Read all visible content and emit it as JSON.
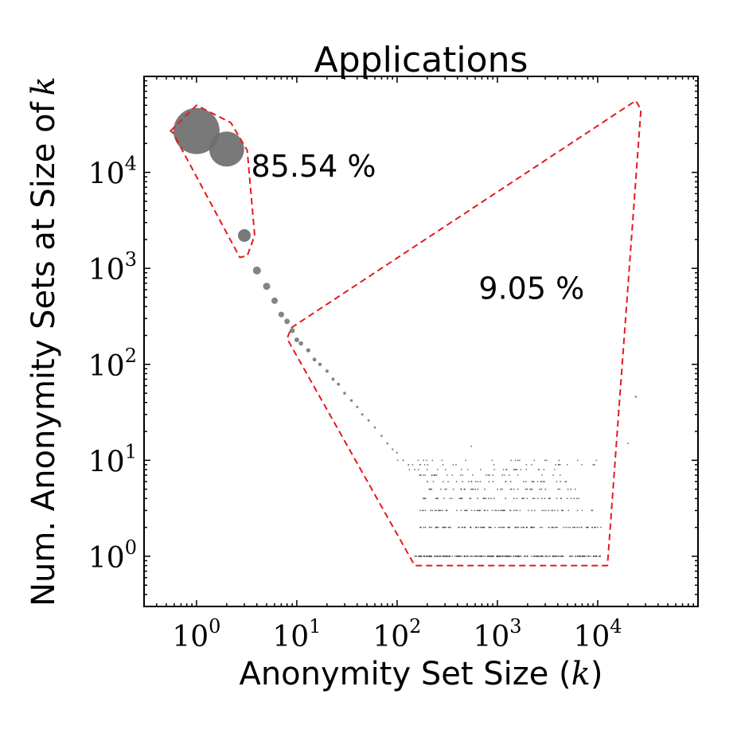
{
  "chart_data": {
    "type": "scatter",
    "title": "Applications",
    "xlabel": "Anonymity Set Size (",
    "xlabel_var": "k",
    "xlabel_end": ")",
    "ylabel": "Num. Anonymity Sets at Size of",
    "ylabel_var": "k",
    "x_scale": "log",
    "y_scale": "log",
    "xlim": [
      0.3,
      100000
    ],
    "ylim": [
      0.3,
      100000
    ],
    "grid": false,
    "x_ticks": [
      {
        "value": 1,
        "base": "10",
        "exp": "0"
      },
      {
        "value": 10,
        "base": "10",
        "exp": "1"
      },
      {
        "value": 100,
        "base": "10",
        "exp": "2"
      },
      {
        "value": 1000,
        "base": "10",
        "exp": "3"
      },
      {
        "value": 10000,
        "base": "10",
        "exp": "4"
      }
    ],
    "y_ticks": [
      {
        "value": 1,
        "base": "10",
        "exp": "0"
      },
      {
        "value": 10,
        "base": "10",
        "exp": "1"
      },
      {
        "value": 100,
        "base": "10",
        "exp": "2"
      },
      {
        "value": 1000,
        "base": "10",
        "exp": "3"
      },
      {
        "value": 10000,
        "base": "10",
        "exp": "4"
      }
    ],
    "point_color": "#6e6e6e",
    "annotation_color": "#e41a1c",
    "points": [
      {
        "x": 1,
        "y": 27000,
        "size": 29
      },
      {
        "x": 2,
        "y": 17500,
        "size": 22
      },
      {
        "x": 3,
        "y": 2200,
        "size": 8
      },
      {
        "x": 4,
        "y": 950,
        "size": 5
      },
      {
        "x": 5,
        "y": 650,
        "size": 4.5
      },
      {
        "x": 6,
        "y": 460,
        "size": 4
      },
      {
        "x": 7,
        "y": 330,
        "size": 3.6
      },
      {
        "x": 8,
        "y": 280,
        "size": 3.4
      },
      {
        "x": 9,
        "y": 225,
        "size": 3.2
      },
      {
        "x": 10,
        "y": 180,
        "size": 3
      },
      {
        "x": 11,
        "y": 165,
        "size": 2.8
      },
      {
        "x": 13,
        "y": 140,
        "size": 2.6
      },
      {
        "x": 15,
        "y": 112,
        "size": 2.4
      },
      {
        "x": 17,
        "y": 100,
        "size": 2.2
      },
      {
        "x": 20,
        "y": 85,
        "size": 2.1
      },
      {
        "x": 23,
        "y": 70,
        "size": 2
      },
      {
        "x": 26,
        "y": 62,
        "size": 1.9
      },
      {
        "x": 30,
        "y": 50,
        "size": 1.8
      },
      {
        "x": 35,
        "y": 42,
        "size": 1.7
      },
      {
        "x": 40,
        "y": 36,
        "size": 1.6
      },
      {
        "x": 45,
        "y": 30,
        "size": 1.5
      },
      {
        "x": 52,
        "y": 26,
        "size": 1.5
      },
      {
        "x": 60,
        "y": 22,
        "size": 1.4
      },
      {
        "x": 70,
        "y": 18,
        "size": 1.3
      },
      {
        "x": 80,
        "y": 15,
        "size": 1.3
      },
      {
        "x": 90,
        "y": 13,
        "size": 1.2
      },
      {
        "x": 100,
        "y": 12,
        "size": 1.2
      },
      {
        "x": 115,
        "y": 10,
        "size": 1.1
      },
      {
        "x": 130,
        "y": 9,
        "size": 1.1
      },
      {
        "x": 150,
        "y": 8,
        "size": 1
      },
      {
        "x": 170,
        "y": 7,
        "size": 1
      },
      {
        "x": 200,
        "y": 6,
        "size": 1
      },
      {
        "x": 550,
        "y": 14,
        "size": 1
      },
      {
        "x": 1600,
        "y": 10,
        "size": 1
      },
      {
        "x": 16000,
        "y": 33,
        "size": 1
      },
      {
        "x": 20000,
        "y": 15,
        "size": 1
      },
      {
        "x": 24000,
        "y": 46,
        "size": 1.3
      }
    ],
    "bands": [
      {
        "y": 1,
        "x_from": 150,
        "x_to": 11000
      },
      {
        "y": 2,
        "x_from": 170,
        "x_to": 11000
      },
      {
        "y": 3,
        "x_from": 170,
        "x_to": 11000
      },
      {
        "y": 4,
        "x_from": 180,
        "x_to": 7000
      },
      {
        "y": 5,
        "x_from": 200,
        "x_to": 6000
      },
      {
        "y": 6,
        "x_from": 200,
        "x_to": 5000
      },
      {
        "y": 7,
        "x_from": 130,
        "x_to": 5000
      },
      {
        "y": 8,
        "x_from": 130,
        "x_to": 4000
      },
      {
        "y": 9,
        "x_from": 110,
        "x_to": 10000
      },
      {
        "y": 10,
        "x_from": 100,
        "x_to": 16000
      }
    ],
    "annotations": [
      {
        "text": "85.54 %",
        "x": 3.5,
        "y": 9000
      },
      {
        "text": "9.05 %",
        "x": 650,
        "y": 480
      }
    ],
    "regions": [
      {
        "name": "head-region",
        "vertices": [
          [
            0.55,
            27000
          ],
          [
            1,
            50000
          ],
          [
            2.2,
            33000
          ],
          [
            3.2,
            17000
          ],
          [
            3.8,
            2200
          ],
          [
            3.2,
            1350
          ],
          [
            2.7,
            1300
          ],
          [
            0.58,
            26000
          ]
        ]
      },
      {
        "name": "tail-region",
        "vertices": [
          [
            8.8,
            240
          ],
          [
            24000,
            56000
          ],
          [
            27000,
            45000
          ],
          [
            12500,
            0.8
          ],
          [
            150,
            0.8
          ],
          [
            8,
            185
          ]
        ]
      }
    ]
  }
}
